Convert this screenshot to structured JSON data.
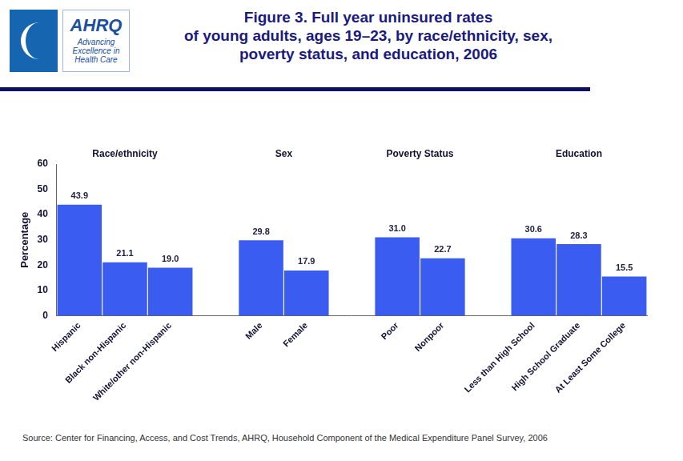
{
  "chart_data": {
    "type": "bar",
    "title": [
      "Figure 3. Full year uninsured rates",
      "of young adults, ages 19–23, by race/ethnicity, sex,",
      "poverty status, and education, 2006"
    ],
    "y_label": "Percentage",
    "categories": [
      "Hispanic",
      "Black non-Hispanic",
      "White/other non-Hispanic",
      null,
      "Male",
      "Female",
      null,
      "Poor",
      "Nonpoor",
      null,
      "Less than High School",
      "High School Graduate",
      "At Least Some College"
    ],
    "values": [
      43.9,
      21.1,
      19.0,
      null,
      29.8,
      17.9,
      null,
      31.0,
      22.7,
      null,
      30.6,
      28.3,
      15.5
    ],
    "value_labels": [
      "43.9",
      "21.1",
      "19.0",
      null,
      "29.8",
      "17.9",
      null,
      "31.0",
      "22.7",
      null,
      "30.6",
      "28.3",
      "15.5"
    ],
    "groups": [
      {
        "name": "Race/ethnicity",
        "categories": [
          "Hispanic",
          "Black non-Hispanic",
          "White/other non-Hispanic"
        ]
      },
      {
        "name": "Sex",
        "categories": [
          "Male",
          "Female"
        ]
      },
      {
        "name": "Poverty Status",
        "categories": [
          "Poor",
          "Nonpoor"
        ]
      },
      {
        "name": "Education",
        "categories": [
          "Less than High School",
          "High School Graduate",
          "At Least Some College"
        ]
      }
    ],
    "color": "#3b5cf0",
    "ylim": [
      0,
      60
    ],
    "yticks": [
      0,
      10,
      20,
      30,
      40,
      50,
      60
    ],
    "grid": false,
    "data_labels": true
  },
  "logo": {
    "name": "AHRQ",
    "tagline": "Advancing Excellence in Health Care"
  },
  "source": "Source: Center for Financing, Access, and Cost Trends, AHRQ, Household Component of the Medical Expenditure Panel Survey, 2006"
}
